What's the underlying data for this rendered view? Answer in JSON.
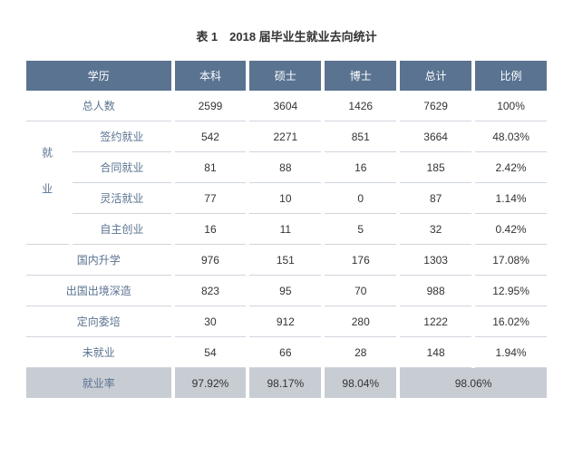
{
  "title": "表 1　2018 届毕业生就业去向统计",
  "headers": {
    "degree": "学历",
    "bachelor": "本科",
    "master": "硕士",
    "doctor": "博士",
    "total": "总计",
    "ratio": "比例"
  },
  "rows": {
    "total_count": {
      "label": "总人数",
      "v": [
        "2599",
        "3604",
        "1426",
        "7629",
        "100%"
      ]
    },
    "group_label": "就业",
    "signed": {
      "label": "签约就业",
      "v": [
        "542",
        "2271",
        "851",
        "3664",
        "48.03%"
      ]
    },
    "contract": {
      "label": "合同就业",
      "v": [
        "81",
        "88",
        "16",
        "185",
        "2.42%"
      ]
    },
    "flexible": {
      "label": "灵活就业",
      "v": [
        "77",
        "10",
        "0",
        "87",
        "1.14%"
      ]
    },
    "startup": {
      "label": "自主创业",
      "v": [
        "16",
        "11",
        "5",
        "32",
        "0.42%"
      ]
    },
    "domestic": {
      "label": "国内升学",
      "v": [
        "976",
        "151",
        "176",
        "1303",
        "17.08%"
      ]
    },
    "abroad": {
      "label": "出国出境深造",
      "v": [
        "823",
        "95",
        "70",
        "988",
        "12.95%"
      ]
    },
    "directed": {
      "label": "定向委培",
      "v": [
        "30",
        "912",
        "280",
        "1222",
        "16.02%"
      ]
    },
    "unemployed": {
      "label": "未就业",
      "v": [
        "54",
        "66",
        "28",
        "148",
        "1.94%"
      ]
    },
    "rate": {
      "label": "就业率",
      "v": [
        "97.92%",
        "98.17%",
        "98.04%",
        "98.06%"
      ]
    }
  },
  "colors": {
    "header_bg": "#5a7391",
    "header_fg": "#ffffff",
    "label_fg": "#5a7391",
    "data_fg": "#333333",
    "border": "#d0d5dd",
    "footer_bg": "#c8cdd4"
  }
}
